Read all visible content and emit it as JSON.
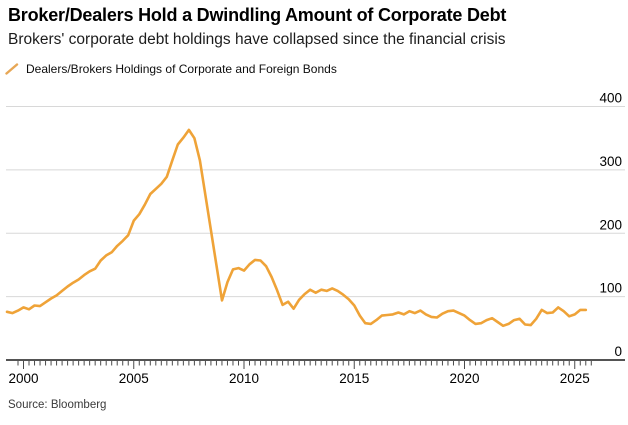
{
  "header": {
    "title": "Broker/Dealers Hold a Dwindling Amount of Corporate Debt",
    "subtitle": "Brokers' corporate debt holdings have collapsed since the financial crisis"
  },
  "legend": {
    "label": "Dealers/Brokers Holdings of Corporate and Foreign Bonds"
  },
  "footer": {
    "source": "Source: Bloomberg"
  },
  "colors": {
    "line": "#EFA338",
    "legend_swatch": "#E7A756",
    "grid": "#D8D8D8",
    "axis": "#1A1A1A",
    "tick": "#4A4A4A",
    "label": "#000000"
  },
  "chart_data": {
    "type": "line",
    "title": "Broker/Dealers Hold a Dwindling Amount of Corporate Debt",
    "subtitle": "Brokers' corporate debt holdings have collapsed since the financial crisis",
    "xlabel": "",
    "ylabel": "",
    "legend_position": "top-left",
    "y_axis_side": "right",
    "grid": "horizontal",
    "xlim": [
      1999.25,
      2027.4
    ],
    "ylim": [
      0,
      400
    ],
    "xticks": [
      2000,
      2005,
      2010,
      2015,
      2020,
      2025
    ],
    "xtick_labels": [
      "2000",
      "2005",
      "2010",
      "2015",
      "2020",
      "2025"
    ],
    "minor_xtick_step_years": 0.25,
    "yticks": [
      0,
      100,
      200,
      300,
      400
    ],
    "ytick_labels": [
      "0",
      "100",
      "200",
      "300",
      "400"
    ],
    "series": [
      {
        "name": "Dealers/Brokers Holdings of Corporate and Foreign Bonds",
        "x_start": 1999.25,
        "x_step": 0.25,
        "values": [
          76,
          74,
          78,
          83,
          80,
          86,
          85,
          91,
          97,
          102,
          109,
          116,
          122,
          127,
          134,
          140,
          144,
          157,
          165,
          170,
          180,
          188,
          197,
          220,
          230,
          245,
          262,
          270,
          278,
          289,
          315,
          340,
          351,
          363,
          350,
          315,
          260,
          205,
          150,
          94,
          123,
          143,
          145,
          141,
          151,
          158,
          157,
          148,
          131,
          110,
          87,
          92,
          81,
          95,
          104,
          111,
          106,
          111,
          109,
          113,
          109,
          103,
          96,
          86,
          70,
          58,
          57,
          63,
          70,
          71,
          72,
          75,
          72,
          77,
          74,
          78,
          72,
          68,
          67,
          73,
          77,
          78,
          74,
          70,
          63,
          57,
          58,
          63,
          66,
          60,
          54,
          57,
          63,
          65,
          56,
          55,
          65,
          79,
          74,
          75,
          83,
          77,
          69,
          72,
          79,
          79
        ]
      }
    ]
  }
}
